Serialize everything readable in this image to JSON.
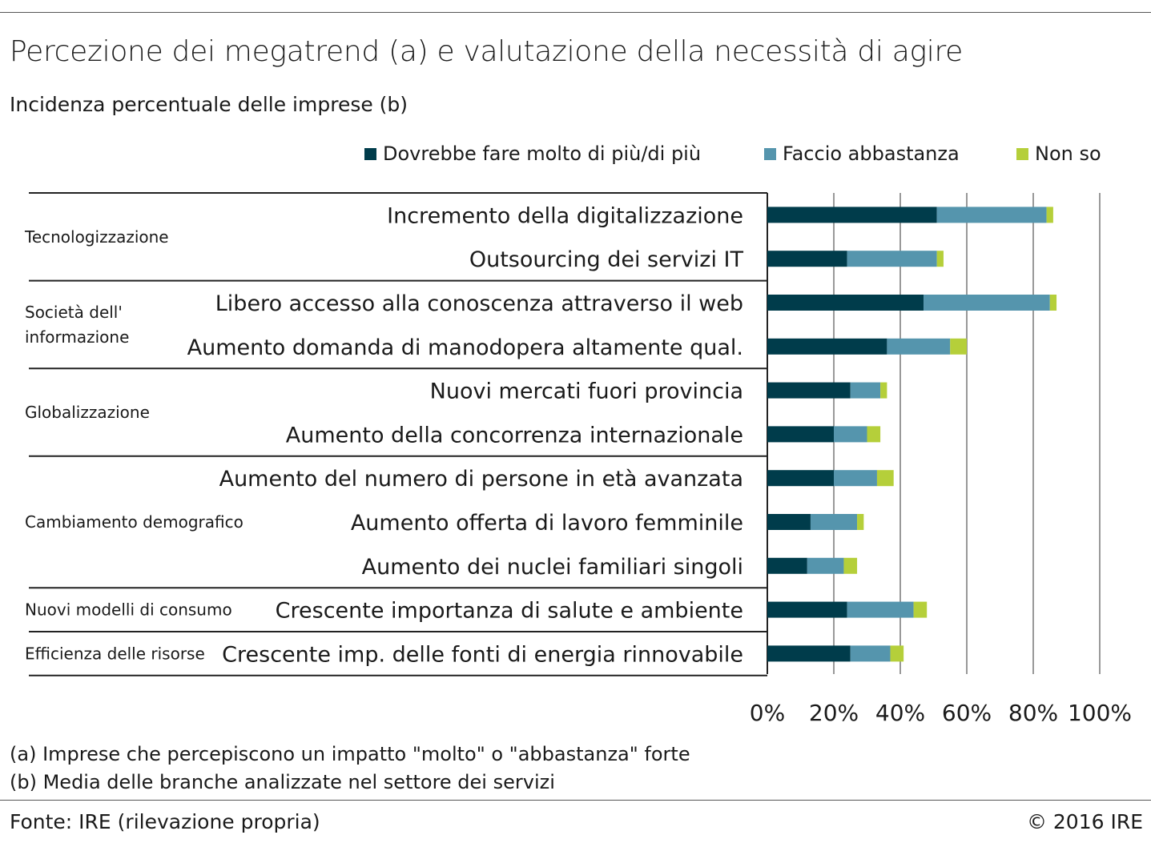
{
  "header": {
    "title": "Percezione dei megatrend (a) e valutazione della necessità di agire",
    "subtitle": "Incidenza percentuale delle imprese (b)"
  },
  "colors": {
    "series1": "#003c4b",
    "series2": "#5595ad",
    "series3": "#b5cf3a"
  },
  "footnotes": [
    "(a) Imprese che percepiscono un impatto \"molto\" o \"abbastanza\" forte",
    "(b) Media delle branche analizzate nel settore dei servizi"
  ],
  "footer": {
    "source": "Fonte: IRE (rilevazione propria)",
    "copyright": "© 2016 IRE"
  },
  "chart_data": {
    "type": "bar",
    "orientation": "horizontal",
    "stacked": true,
    "series_names": [
      "Dovrebbe fare molto di più/di più",
      "Faccio abbastanza",
      "Non so"
    ],
    "groups": [
      {
        "label": "Tecnologizzazione",
        "rows": [
          {
            "label": "Incremento della digitalizzazione",
            "values": [
              51,
              33,
              2
            ]
          },
          {
            "label": "Outsourcing dei servizi IT",
            "values": [
              24,
              27,
              2
            ]
          }
        ]
      },
      {
        "label": "Società dell' informazione",
        "label_lines": [
          "Società dell'",
          "informazione"
        ],
        "rows": [
          {
            "label": "Libero accesso alla conoscenza attraverso il web",
            "values": [
              47,
              38,
              2
            ]
          },
          {
            "label": "Aumento domanda di manodopera altamente qual.",
            "values": [
              36,
              19,
              5
            ]
          }
        ]
      },
      {
        "label": "Globalizzazione",
        "rows": [
          {
            "label": "Nuovi mercati fuori provincia",
            "values": [
              25,
              9,
              2
            ]
          },
          {
            "label": "Aumento della concorrenza internazionale",
            "values": [
              20,
              10,
              4
            ]
          }
        ]
      },
      {
        "label": "Cambiamento demografico",
        "rows": [
          {
            "label": "Aumento del numero di persone in età avanzata",
            "values": [
              20,
              13,
              5
            ]
          },
          {
            "label": "Aumento offerta di lavoro femminile",
            "values": [
              13,
              14,
              2
            ]
          },
          {
            "label": "Aumento dei nuclei familiari singoli",
            "values": [
              12,
              11,
              4
            ]
          }
        ]
      },
      {
        "label": "Nuovi modelli di consumo",
        "rows": [
          {
            "label": "Crescente importanza di salute e ambiente",
            "values": [
              24,
              20,
              4
            ]
          }
        ]
      },
      {
        "label": "Efficienza delle risorse",
        "rows": [
          {
            "label": "Crescente imp. delle fonti di energia rinnovabile",
            "values": [
              25,
              12,
              4
            ]
          }
        ]
      }
    ],
    "x_ticks": [
      "0%",
      "20%",
      "40%",
      "60%",
      "80%",
      "100%"
    ],
    "xlim": [
      0,
      100
    ],
    "grid": true,
    "legend_position": "top"
  }
}
